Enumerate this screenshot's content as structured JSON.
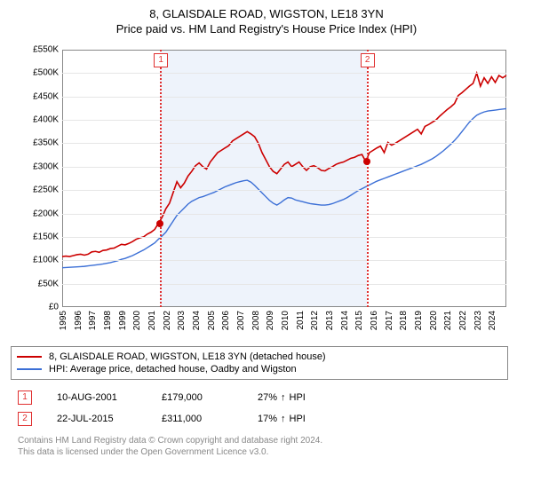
{
  "title_line1": "8, GLAISDALE ROAD, WIGSTON, LE18 3YN",
  "title_line2": "Price paid vs. HM Land Registry's House Price Index (HPI)",
  "chart": {
    "type": "line",
    "x_start_year": 1995,
    "x_end_year": 2025,
    "xtick_years": [
      1995,
      1996,
      1997,
      1998,
      1999,
      2000,
      2001,
      2002,
      2003,
      2004,
      2005,
      2006,
      2007,
      2008,
      2009,
      2010,
      2011,
      2012,
      2013,
      2014,
      2015,
      2016,
      2017,
      2018,
      2019,
      2020,
      2021,
      2022,
      2023,
      2024
    ],
    "ylim_min_gbp": 0,
    "ylim_max_gbp": 550000,
    "ytick_step_gbp": 50000,
    "ytick_prefix": "£",
    "ytick_suffix": "K",
    "background_color": "#ffffff",
    "grid_color": "#e6e6e6",
    "axis_color": "#888888",
    "tick_fontsize_pt": 10,
    "title_fontsize_pt": 13,
    "band": {
      "from_year": 2001.61,
      "to_year": 2015.56,
      "fill": "#eef3fb"
    },
    "markers": [
      {
        "n": "1",
        "year": 2001.61,
        "color": "#e03030"
      },
      {
        "n": "2",
        "year": 2015.56,
        "color": "#e03030"
      }
    ],
    "series": [
      {
        "name": "price_paid",
        "label": "8, GLAISDALE ROAD, WIGSTON, LE18 3YN (detached house)",
        "color": "#cc0000",
        "line_width": 1.6,
        "values_gbp": [
          108000,
          109000,
          108000,
          110000,
          112000,
          113000,
          111000,
          113000,
          118000,
          119000,
          117000,
          121000,
          122000,
          125000,
          126000,
          130000,
          134000,
          133000,
          136000,
          140000,
          145000,
          148000,
          150000,
          156000,
          160000,
          166000,
          179000,
          192000,
          210000,
          222000,
          245000,
          268000,
          255000,
          265000,
          280000,
          290000,
          302000,
          308000,
          300000,
          295000,
          310000,
          320000,
          330000,
          335000,
          340000,
          345000,
          355000,
          360000,
          365000,
          370000,
          375000,
          370000,
          364000,
          350000,
          330000,
          315000,
          300000,
          290000,
          285000,
          295000,
          305000,
          310000,
          300000,
          305000,
          310000,
          300000,
          292000,
          300000,
          302000,
          298000,
          292000,
          291000,
          296000,
          300000,
          305000,
          308000,
          310000,
          314000,
          318000,
          320000,
          324000,
          326000,
          311000,
          330000,
          335000,
          340000,
          344000,
          330000,
          352000,
          346000,
          350000,
          355000,
          360000,
          365000,
          370000,
          375000,
          380000,
          370000,
          386000,
          390000,
          395000,
          400000,
          408000,
          415000,
          422000,
          428000,
          435000,
          452000,
          458000,
          465000,
          472000,
          478000,
          500000,
          472000,
          490000,
          478000,
          492000,
          480000,
          495000,
          490000,
          495000
        ]
      },
      {
        "name": "hpi",
        "label": "HPI: Average price, detached house, Oadby and Wigston",
        "color": "#3b6fd6",
        "line_width": 1.4,
        "values_gbp": [
          84000,
          84500,
          85000,
          85500,
          86000,
          86500,
          87000,
          88000,
          89000,
          90000,
          91000,
          92000,
          93500,
          95000,
          97000,
          99000,
          102000,
          104000,
          107000,
          110000,
          114000,
          118000,
          122000,
          127000,
          132000,
          137000,
          145000,
          152000,
          160000,
          172000,
          184000,
          196000,
          204000,
          212000,
          220000,
          226000,
          230000,
          234000,
          236000,
          239000,
          242000,
          245000,
          249000,
          253000,
          257000,
          260000,
          263000,
          266000,
          268000,
          270000,
          271000,
          267000,
          260000,
          252000,
          244000,
          236000,
          228000,
          222000,
          218000,
          223000,
          229000,
          234000,
          233000,
          229000,
          227000,
          225000,
          223000,
          221000,
          220000,
          219000,
          218000,
          218000,
          219000,
          221000,
          224000,
          227000,
          230000,
          234000,
          239000,
          244000,
          249000,
          253000,
          257000,
          261000,
          265000,
          269000,
          272000,
          275000,
          278000,
          281000,
          284000,
          287000,
          290000,
          293000,
          296000,
          299000,
          302000,
          305000,
          309000,
          313000,
          317000,
          322000,
          328000,
          334000,
          341000,
          348000,
          356000,
          365000,
          375000,
          385000,
          395000,
          403000,
          410000,
          414000,
          417000,
          419000,
          420000,
          421000,
          422000,
          423000,
          424000
        ]
      }
    ],
    "sale_points": [
      {
        "year": 2001.61,
        "value_gbp": 179000,
        "color": "#cc0000"
      },
      {
        "year": 2015.56,
        "value_gbp": 311000,
        "color": "#cc0000"
      }
    ]
  },
  "legend": {
    "border_color": "#888888"
  },
  "sales": [
    {
      "n": "1",
      "date": "10-AUG-2001",
      "price": "£179,000",
      "delta_pct": "27%",
      "delta_dir": "↑",
      "delta_label": "HPI",
      "marker_color": "#e03030"
    },
    {
      "n": "2",
      "date": "22-JUL-2015",
      "price": "£311,000",
      "delta_pct": "17%",
      "delta_dir": "↑",
      "delta_label": "HPI",
      "marker_color": "#e03030"
    }
  ],
  "footer_line1": "Contains HM Land Registry data © Crown copyright and database right 2024.",
  "footer_line2": "This data is licensed under the Open Government Licence v3.0."
}
